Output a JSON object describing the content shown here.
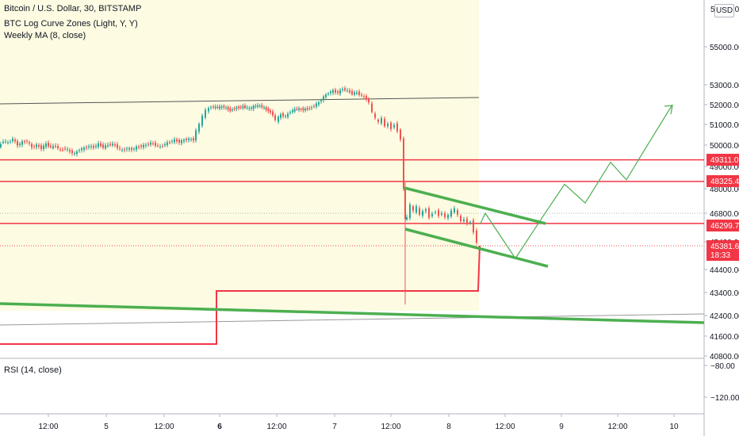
{
  "legend": {
    "symbol": "Bitcoin / U.S. Dollar, 30, BITSTAMP",
    "indicator1": "BTC Log Curve Zones (Light, Y, Y)",
    "indicator2": "Weekly MA (8, close)",
    "rsi": "RSI (14, close)"
  },
  "currency": "USD",
  "price_axis": {
    "ticks": [
      "55000.00",
      "53000.00",
      "52000.00",
      "51000.00",
      "50000.00",
      "49000.00",
      "48000.00",
      "46800.00",
      "45400.00",
      "44400.00",
      "43400.00",
      "42400.00",
      "41600.00",
      "40800.00"
    ],
    "top_label": "57000.00"
  },
  "price_tags": [
    {
      "label": "49311.05",
      "color": "#f23645"
    },
    {
      "label": "48325.42",
      "color": "#f23645"
    },
    {
      "label": "46299.71",
      "color": "#f23645"
    },
    {
      "label": "45381.68",
      "time": "18:33",
      "color": "#f23645"
    }
  ],
  "rsi_axis": {
    "ticks": [
      "80.00",
      "120.00"
    ]
  },
  "time_axis": {
    "ticks": [
      "12:00",
      "5",
      "12:00",
      "6",
      "12:00",
      "7",
      "12:00",
      "8",
      "12:00",
      "9",
      "12:00",
      "10"
    ]
  },
  "colors": {
    "up": "#26a69a",
    "down": "#ef5350",
    "support": "#f23645",
    "channel": "#4caf50",
    "zone": "#fdfbe2",
    "axis_text": "#131722"
  },
  "chart_data": {
    "type": "candlestick",
    "title": "Bitcoin / U.S. Dollar, 30, BITSTAMP",
    "ylim": [
      40500,
      57500
    ],
    "levels": [
      49311.05,
      48325.42,
      46299.71
    ],
    "last_price": 45381.68,
    "ohlc_path": [
      [
        0,
        49900
      ],
      [
        6,
        50200
      ],
      [
        12,
        50100
      ],
      [
        18,
        50300
      ],
      [
        24,
        50000
      ],
      [
        30,
        50150
      ],
      [
        36,
        50200
      ],
      [
        42,
        49900
      ],
      [
        48,
        50000
      ],
      [
        54,
        49850
      ],
      [
        60,
        50050
      ],
      [
        66,
        49900
      ],
      [
        72,
        49950
      ],
      [
        78,
        49750
      ],
      [
        84,
        49850
      ],
      [
        90,
        49700
      ],
      [
        96,
        49600
      ],
      [
        102,
        49800
      ],
      [
        108,
        49850
      ],
      [
        114,
        49950
      ],
      [
        120,
        49900
      ],
      [
        126,
        50050
      ],
      [
        132,
        49900
      ],
      [
        138,
        50000
      ],
      [
        144,
        50050
      ],
      [
        150,
        49900
      ],
      [
        156,
        49750
      ],
      [
        162,
        49850
      ],
      [
        168,
        49800
      ],
      [
        174,
        49900
      ],
      [
        180,
        49950
      ],
      [
        186,
        50000
      ],
      [
        192,
        50100
      ],
      [
        198,
        50000
      ],
      [
        204,
        49900
      ],
      [
        210,
        50050
      ],
      [
        216,
        50150
      ],
      [
        222,
        50250
      ],
      [
        228,
        50150
      ],
      [
        234,
        50250
      ],
      [
        240,
        50300
      ],
      [
        246,
        50250
      ],
      [
        250,
        50700
      ],
      [
        254,
        51000
      ],
      [
        258,
        51400
      ],
      [
        262,
        51700
      ],
      [
        268,
        51900
      ],
      [
        276,
        51850
      ],
      [
        284,
        51900
      ],
      [
        292,
        51700
      ],
      [
        300,
        51850
      ],
      [
        308,
        51900
      ],
      [
        316,
        51800
      ],
      [
        324,
        51950
      ],
      [
        332,
        51900
      ],
      [
        340,
        51700
      ],
      [
        346,
        51500
      ],
      [
        350,
        51200
      ],
      [
        356,
        51500
      ],
      [
        362,
        51400
      ],
      [
        368,
        51650
      ],
      [
        376,
        51800
      ],
      [
        384,
        51750
      ],
      [
        392,
        51800
      ],
      [
        398,
        51950
      ],
      [
        404,
        52100
      ],
      [
        410,
        52400
      ],
      [
        416,
        52600
      ],
      [
        422,
        52700
      ],
      [
        428,
        52600
      ],
      [
        434,
        52800
      ],
      [
        440,
        52700
      ],
      [
        446,
        52550
      ],
      [
        452,
        52600
      ],
      [
        458,
        52450
      ],
      [
        464,
        52300
      ],
      [
        468,
        52100
      ],
      [
        472,
        51600
      ],
      [
        476,
        51300
      ],
      [
        480,
        51100
      ],
      [
        484,
        51300
      ],
      [
        488,
        50900
      ],
      [
        492,
        51050
      ],
      [
        496,
        50800
      ],
      [
        500,
        51000
      ],
      [
        504,
        50700
      ],
      [
        508,
        50300
      ],
      [
        510,
        48000
      ],
      [
        512,
        46500
      ],
      [
        516,
        46600
      ],
      [
        520,
        47200
      ],
      [
        524,
        46900
      ],
      [
        528,
        47100
      ],
      [
        532,
        46700
      ],
      [
        536,
        46900
      ],
      [
        540,
        47000
      ],
      [
        544,
        46600
      ],
      [
        548,
        46800
      ],
      [
        552,
        46900
      ],
      [
        556,
        46700
      ],
      [
        560,
        46800
      ],
      [
        564,
        46600
      ],
      [
        568,
        46700
      ],
      [
        572,
        46900
      ],
      [
        576,
        47000
      ],
      [
        580,
        46700
      ],
      [
        584,
        46400
      ],
      [
        588,
        46500
      ],
      [
        592,
        46300
      ],
      [
        596,
        46400
      ],
      [
        600,
        45900
      ],
      [
        604,
        45400
      ]
    ],
    "projection": [
      [
        606,
        46300
      ],
      [
        612,
        46800
      ],
      [
        650,
        44800
      ],
      [
        684,
        46600
      ],
      [
        712,
        48200
      ],
      [
        738,
        47300
      ],
      [
        770,
        49200
      ],
      [
        790,
        48400
      ],
      [
        810,
        49600
      ],
      [
        848,
        52000
      ]
    ]
  }
}
